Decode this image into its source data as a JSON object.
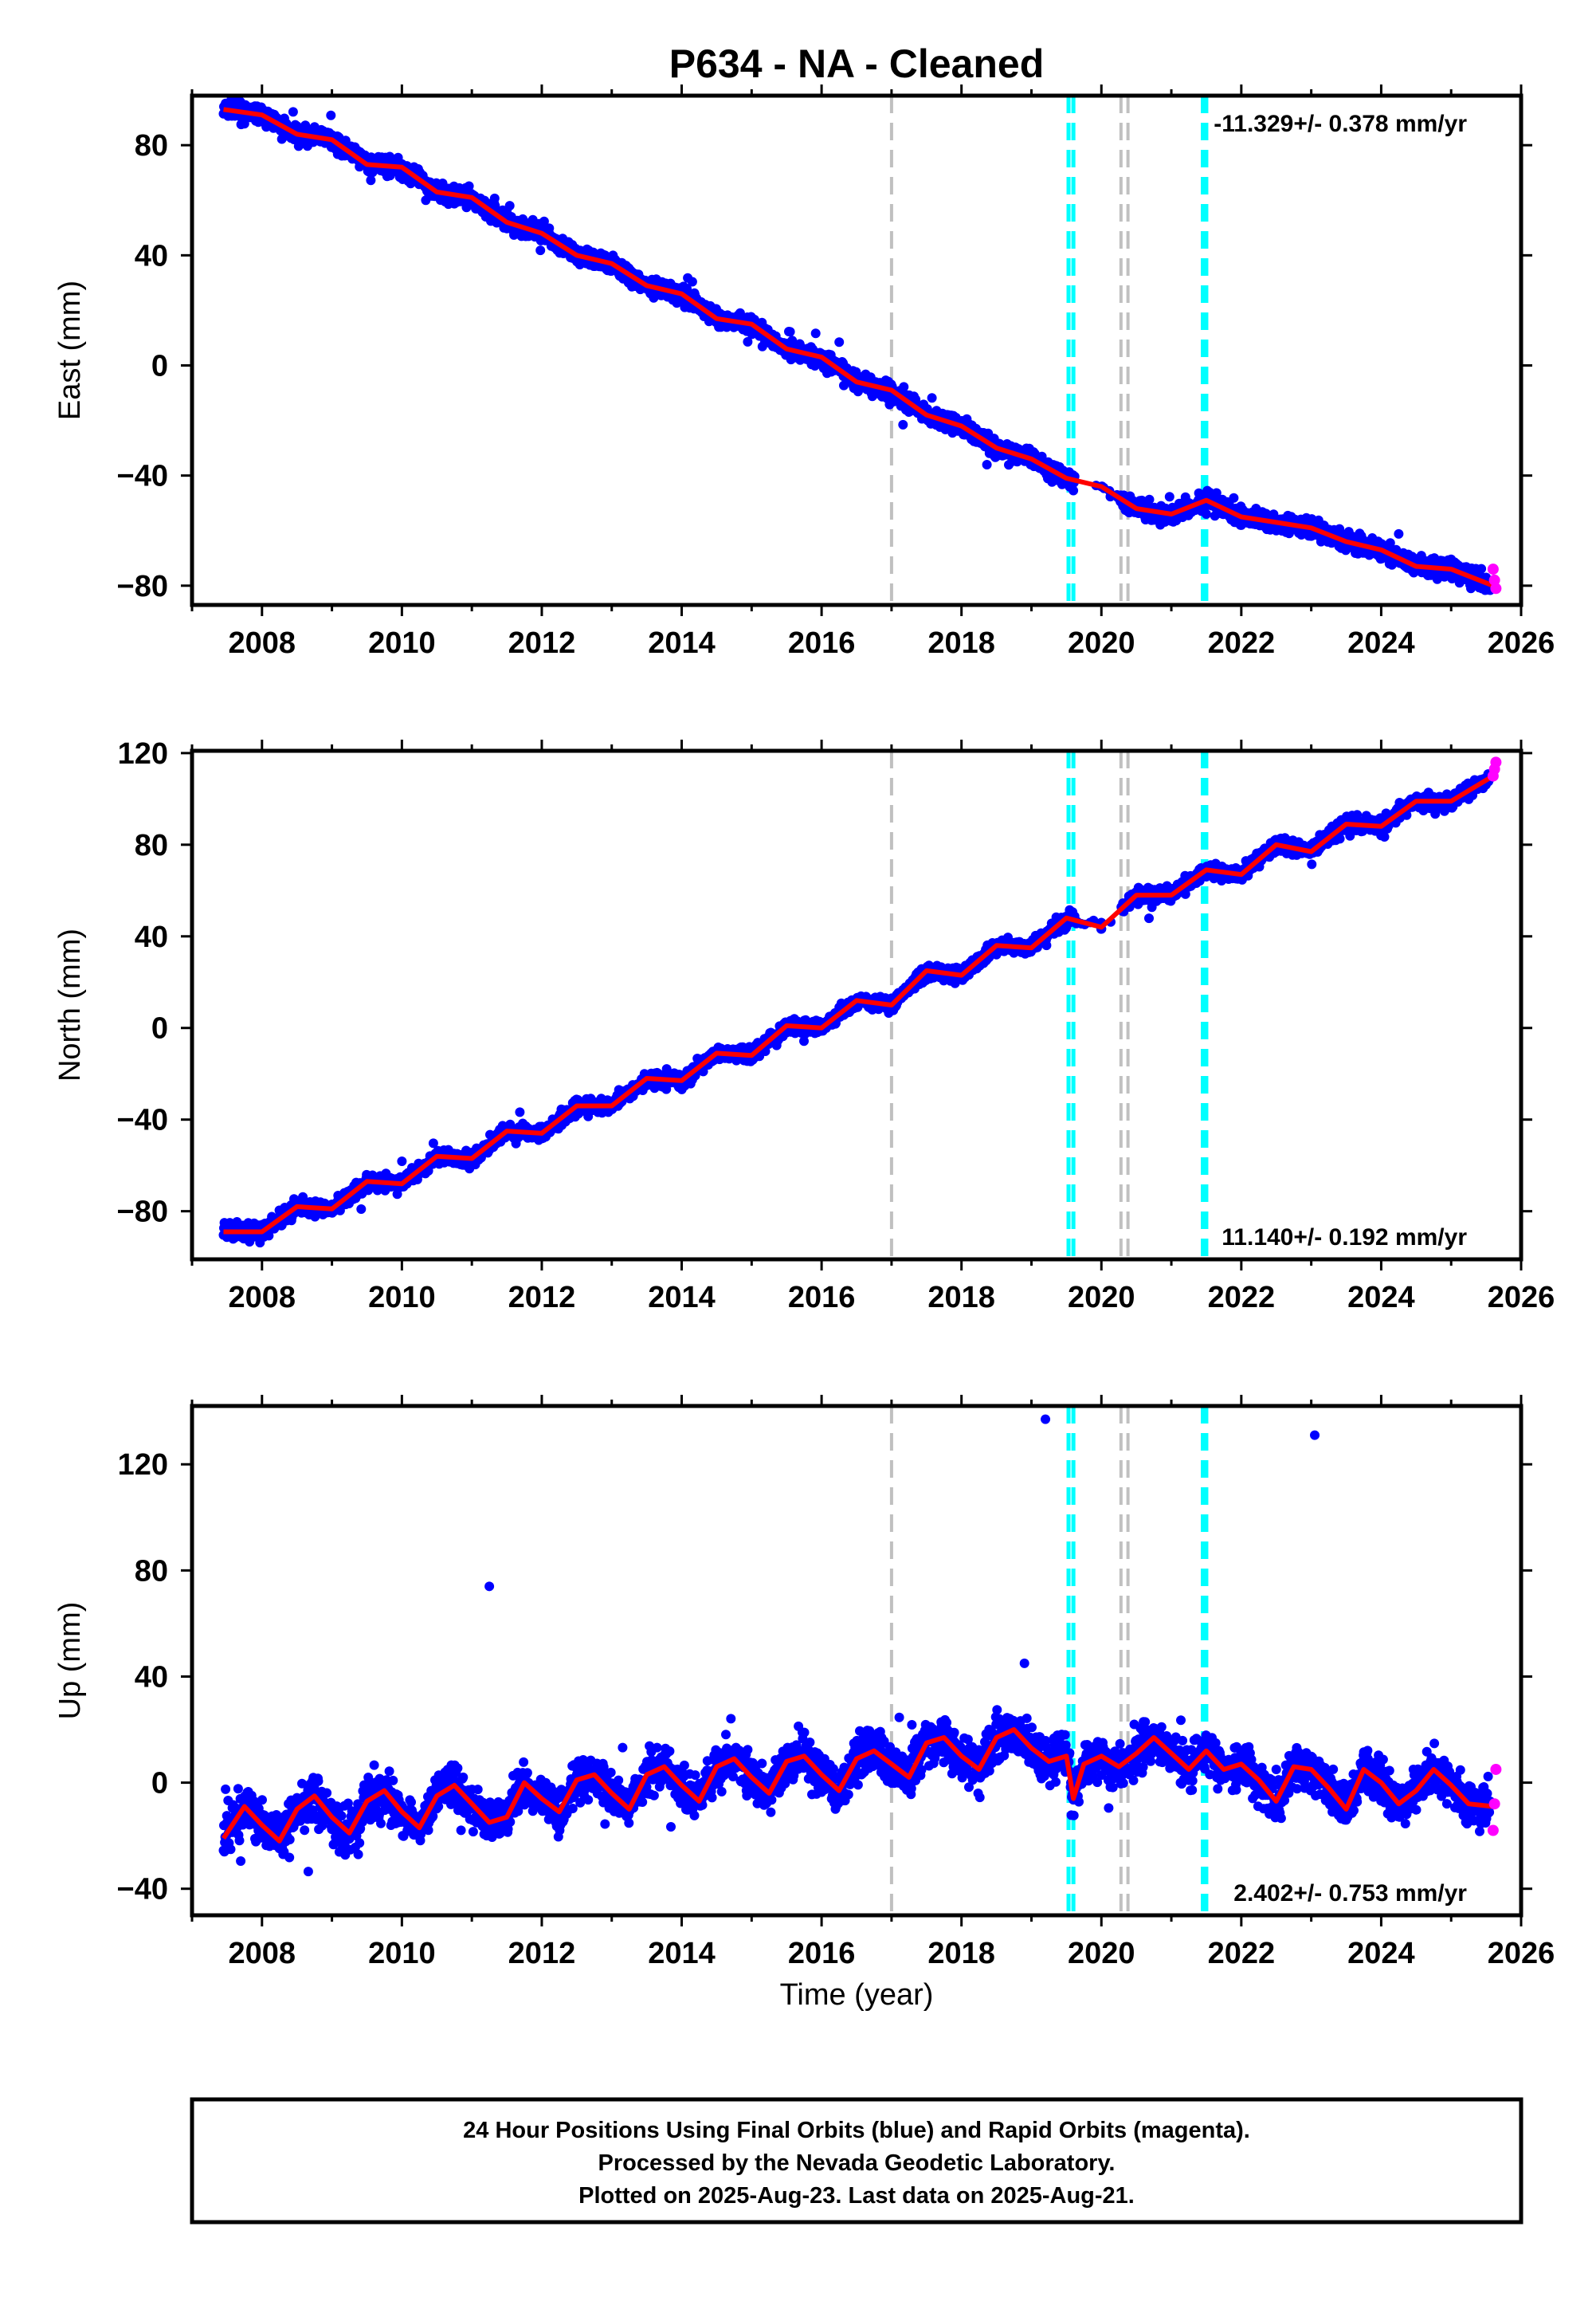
{
  "figure": {
    "title": "P634  - NA - Cleaned",
    "x_axis_label": "Time (year)",
    "footer_lines": [
      "24 Hour Positions Using Final Orbits (blue) and Rapid Orbits (magenta).",
      "Processed by the Nevada Geodetic Laboratory.",
      "Plotted on 2025-Aug-23. Last data on 2025-Aug-21."
    ]
  },
  "colors": {
    "final_orbits": "#0000ff",
    "rapid_orbits": "#ff00ff",
    "model": "#ff0000",
    "event_gray": "#c0c0c0",
    "event_cyan": "#00ffff"
  },
  "chart_data": [
    {
      "type": "scatter",
      "ylabel": "East (mm)",
      "xlim": [
        2007.0,
        2026.0
      ],
      "ylim": [
        -87,
        98
      ],
      "x_ticks": [
        2008,
        2010,
        2012,
        2014,
        2016,
        2018,
        2020,
        2022,
        2024,
        2026
      ],
      "y_ticks": [
        -80,
        -40,
        0,
        40,
        80
      ],
      "rate_label": "-11.329+/- 0.378 mm/yr",
      "rate_label_position": "top-right",
      "model_line_x": [
        2007.45,
        2008.0,
        2008.5,
        2009.0,
        2009.5,
        2010.0,
        2010.5,
        2011.0,
        2011.5,
        2012.0,
        2012.5,
        2013.0,
        2013.5,
        2014.0,
        2014.5,
        2015.0,
        2015.5,
        2016.0,
        2016.5,
        2017.0,
        2017.5,
        2018.0,
        2018.5,
        2019.0,
        2019.5,
        2020.0,
        2020.5,
        2021.0,
        2021.5,
        2022.0,
        2022.5,
        2023.0,
        2023.5,
        2024.0,
        2024.5,
        2025.0,
        2025.6
      ],
      "model_line_y": [
        93,
        91,
        84,
        82,
        73,
        72,
        63,
        61,
        52,
        48,
        40,
        37,
        29,
        26,
        17,
        15,
        6,
        3,
        -6,
        -9,
        -18,
        -22,
        -30,
        -34,
        -41,
        -44,
        -52,
        -54,
        -49,
        -55,
        -57,
        -59,
        -64,
        -67,
        -73,
        -74,
        -80
      ],
      "series": [
        {
          "name": "Final Orbits",
          "x": [
            2007.5,
            2008.0,
            2008.5,
            2009.0,
            2009.5,
            2010.0,
            2010.5,
            2011.0,
            2011.5,
            2012.0,
            2012.5,
            2013.0,
            2013.5,
            2014.0,
            2014.5,
            2015.0,
            2015.5,
            2016.0,
            2016.5,
            2017.0,
            2017.5,
            2018.0,
            2018.5,
            2019.0,
            2019.5,
            2020.0,
            2020.5,
            2021.0,
            2021.5,
            2022.0,
            2022.5,
            2023.0,
            2023.5,
            2024.0,
            2024.5,
            2025.0,
            2025.5
          ],
          "y": [
            92,
            89,
            84,
            80,
            74,
            71,
            64,
            60,
            56,
            49,
            41,
            36,
            30,
            24,
            17,
            13,
            6,
            1,
            -4,
            -10,
            -17,
            -23,
            -29,
            -35,
            -41,
            -44,
            -51,
            -54,
            -54,
            -58,
            -60,
            -62,
            -66,
            -68,
            -71,
            -73,
            -77
          ]
        },
        {
          "name": "Rapid Orbits",
          "x": [
            2025.6,
            2025.62,
            2025.64
          ],
          "y": [
            -74,
            -78,
            -81
          ]
        }
      ],
      "event_lines": [
        {
          "x": 2017.0,
          "style": "gray"
        },
        {
          "x": 2019.53,
          "style": "cyan"
        },
        {
          "x": 2019.6,
          "style": "cyan"
        },
        {
          "x": 2020.28,
          "style": "gray"
        },
        {
          "x": 2020.38,
          "style": "gray"
        },
        {
          "x": 2021.45,
          "style": "cyan"
        },
        {
          "x": 2021.5,
          "style": "cyan"
        }
      ]
    },
    {
      "type": "scatter",
      "ylabel": "North (mm)",
      "xlim": [
        2007.0,
        2026.0
      ],
      "ylim": [
        -101,
        121
      ],
      "x_ticks": [
        2008,
        2010,
        2012,
        2014,
        2016,
        2018,
        2020,
        2022,
        2024,
        2026
      ],
      "y_ticks": [
        -80,
        -40,
        0,
        40,
        80,
        120
      ],
      "rate_label": "11.140+/- 0.192 mm/yr",
      "rate_label_position": "bottom-right",
      "model_line_x": [
        2007.45,
        2008.0,
        2008.5,
        2009.0,
        2009.5,
        2010.0,
        2010.5,
        2011.0,
        2011.5,
        2012.0,
        2012.5,
        2013.0,
        2013.5,
        2014.0,
        2014.5,
        2015.0,
        2015.5,
        2016.0,
        2016.5,
        2017.0,
        2017.5,
        2018.0,
        2018.5,
        2019.0,
        2019.5,
        2020.0,
        2020.5,
        2021.0,
        2021.5,
        2022.0,
        2022.5,
        2023.0,
        2023.5,
        2024.0,
        2024.5,
        2025.0,
        2025.6
      ],
      "model_line_y": [
        -89,
        -89,
        -78,
        -79,
        -67,
        -68,
        -56,
        -57,
        -45,
        -46,
        -34,
        -34,
        -22,
        -23,
        -11,
        -12,
        1,
        0,
        12,
        10,
        25,
        23,
        36,
        35,
        48,
        44,
        58,
        58,
        69,
        67,
        80,
        77,
        89,
        88,
        99,
        99,
        110
      ],
      "series": [
        {
          "name": "Final Orbits",
          "x": [
            2007.5,
            2008.0,
            2008.5,
            2009.0,
            2009.5,
            2010.0,
            2010.5,
            2011.0,
            2011.5,
            2012.0,
            2012.5,
            2013.0,
            2013.5,
            2014.0,
            2014.5,
            2015.0,
            2015.5,
            2016.0,
            2016.5,
            2017.0,
            2017.5,
            2018.0,
            2018.5,
            2019.0,
            2019.5,
            2020.0,
            2020.5,
            2021.0,
            2021.5,
            2022.0,
            2022.5,
            2023.0,
            2023.5,
            2024.0,
            2024.5,
            2025.0,
            2025.5
          ],
          "y": [
            -89,
            -88,
            -80,
            -77,
            -69,
            -66,
            -58,
            -55,
            -47,
            -43,
            -36,
            -32,
            -24,
            -21,
            -13,
            -9,
            -2,
            2,
            9,
            13,
            21,
            24,
            32,
            36,
            44,
            46,
            55,
            58,
            66,
            69,
            77,
            80,
            88,
            89,
            97,
            100,
            107
          ]
        },
        {
          "name": "Rapid Orbits",
          "x": [
            2025.6,
            2025.62,
            2025.64
          ],
          "y": [
            110,
            113,
            116
          ]
        }
      ],
      "event_lines": [
        {
          "x": 2017.0,
          "style": "gray"
        },
        {
          "x": 2019.53,
          "style": "cyan"
        },
        {
          "x": 2019.6,
          "style": "cyan"
        },
        {
          "x": 2020.28,
          "style": "gray"
        },
        {
          "x": 2020.38,
          "style": "gray"
        },
        {
          "x": 2021.45,
          "style": "cyan"
        },
        {
          "x": 2021.5,
          "style": "cyan"
        }
      ]
    },
    {
      "type": "scatter",
      "ylabel": "Up (mm)",
      "xlim": [
        2007.0,
        2026.0
      ],
      "ylim": [
        -50,
        142
      ],
      "x_ticks": [
        2008,
        2010,
        2012,
        2014,
        2016,
        2018,
        2020,
        2022,
        2024,
        2026
      ],
      "y_ticks": [
        -40,
        0,
        40,
        80,
        120
      ],
      "rate_label": "2.402+/- 0.753 mm/yr",
      "rate_label_position": "bottom-right",
      "model_line_x": [
        2007.45,
        2007.75,
        2008.0,
        2008.25,
        2008.5,
        2008.75,
        2009.0,
        2009.25,
        2009.5,
        2009.75,
        2010.0,
        2010.25,
        2010.5,
        2010.75,
        2011.0,
        2011.25,
        2011.5,
        2011.75,
        2012.0,
        2012.25,
        2012.5,
        2012.75,
        2013.0,
        2013.25,
        2013.5,
        2013.75,
        2014.0,
        2014.25,
        2014.5,
        2014.75,
        2015.0,
        2015.25,
        2015.5,
        2015.75,
        2016.0,
        2016.25,
        2016.5,
        2016.75,
        2017.0,
        2017.25,
        2017.5,
        2017.75,
        2018.0,
        2018.25,
        2018.5,
        2018.75,
        2019.0,
        2019.25,
        2019.5,
        2019.6,
        2019.75,
        2020.0,
        2020.25,
        2020.5,
        2020.75,
        2021.0,
        2021.25,
        2021.5,
        2021.75,
        2022.0,
        2022.25,
        2022.5,
        2022.75,
        2023.0,
        2023.25,
        2023.5,
        2023.75,
        2024.0,
        2024.25,
        2024.5,
        2024.75,
        2025.0,
        2025.25,
        2025.6
      ],
      "model_line_y": [
        -21,
        -9,
        -16,
        -22,
        -10,
        -5,
        -13,
        -19,
        -7,
        -3,
        -11,
        -17,
        -5,
        -1,
        -8,
        -15,
        -13,
        0,
        -6,
        -11,
        1,
        3,
        -4,
        -10,
        3,
        6,
        -1,
        -7,
        6,
        9,
        2,
        -4,
        8,
        10,
        3,
        -3,
        9,
        12,
        7,
        2,
        15,
        17,
        10,
        5,
        17,
        20,
        13,
        8,
        10,
        -6,
        7,
        10,
        6,
        11,
        17,
        11,
        5,
        12,
        5,
        7,
        1,
        -7,
        6,
        5,
        -2,
        -10,
        5,
        0,
        -8,
        -3,
        5,
        -1,
        -8,
        -9
      ],
      "series": [
        {
          "name": "Final Orbits",
          "x": [
            2007.5,
            2008.0,
            2008.5,
            2009.0,
            2009.5,
            2010.0,
            2010.5,
            2011.0,
            2011.25,
            2011.5,
            2012.0,
            2012.5,
            2013.0,
            2013.5,
            2014.0,
            2014.5,
            2015.0,
            2015.5,
            2016.0,
            2016.5,
            2017.0,
            2017.5,
            2018.0,
            2018.5,
            2018.9,
            2019.2,
            2019.5,
            2020.0,
            2020.5,
            2021.0,
            2021.5,
            2022.0,
            2022.5,
            2023.0,
            2023.05,
            2023.5,
            2024.0,
            2024.5,
            2025.0,
            2025.5
          ],
          "y": [
            -15,
            -12,
            -8,
            -13,
            -6,
            -10,
            -4,
            -6,
            74,
            -10,
            -3,
            2,
            -2,
            5,
            2,
            8,
            6,
            10,
            8,
            11,
            10,
            15,
            12,
            18,
            45,
            137,
            8,
            8,
            12,
            15,
            9,
            10,
            5,
            7,
            131,
            -5,
            1,
            2,
            -1,
            -6
          ]
        },
        {
          "name": "Rapid Orbits",
          "x": [
            2025.6,
            2025.62,
            2025.64
          ],
          "y": [
            -18,
            -8,
            5
          ]
        }
      ],
      "event_lines": [
        {
          "x": 2017.0,
          "style": "gray"
        },
        {
          "x": 2019.53,
          "style": "cyan"
        },
        {
          "x": 2019.6,
          "style": "cyan"
        },
        {
          "x": 2020.28,
          "style": "gray"
        },
        {
          "x": 2020.38,
          "style": "gray"
        },
        {
          "x": 2021.45,
          "style": "cyan"
        },
        {
          "x": 2021.5,
          "style": "cyan"
        }
      ]
    }
  ]
}
